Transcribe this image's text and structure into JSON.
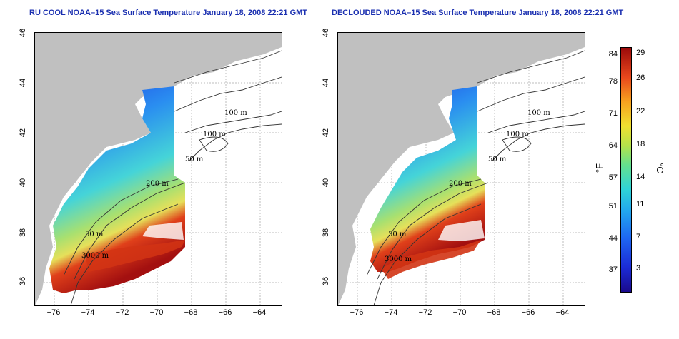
{
  "titles": {
    "left": "RU COOL NOAA–15 Sea Surface Temperature January 18, 2008 22:21 GMT",
    "right": "DECLOUDED NOAA–15 Sea Surface Temperature January 18, 2008 22:21 GMT"
  },
  "axes": {
    "x_ticks": [
      "−76",
      "−74",
      "−72",
      "−70",
      "−68",
      "−66",
      "−64"
    ],
    "y_ticks": [
      "36",
      "38",
      "40",
      "42",
      "44",
      "46"
    ]
  },
  "contours": {
    "m100a": "100 m",
    "m100b": "100 m",
    "m50": "50 m",
    "m200": "200 m",
    "m50b": "50 m",
    "m3000": "3000 m"
  },
  "colorbar": {
    "f_label": "°F",
    "c_label": "°C",
    "f_ticks": [
      "84",
      "78",
      "71",
      "64",
      "57",
      "51",
      "44",
      "37"
    ],
    "c_ticks": [
      "29",
      "26",
      "22",
      "18",
      "14",
      "11",
      "7",
      "3"
    ]
  },
  "colors": {
    "land": "#c0c0c0",
    "title": "#1a2fb0",
    "cold": "#1e3fe0",
    "mid": "#3ac4e8",
    "warm": "#d8e25a",
    "hot": "#e0401a"
  }
}
